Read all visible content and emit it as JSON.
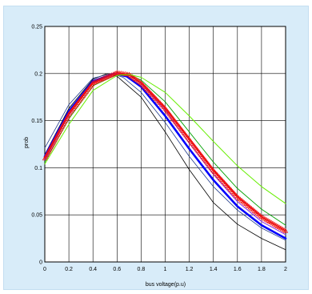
{
  "colors": {
    "panel_background": "#d8ecf9",
    "plot_background": "#ffffff",
    "grid": "#000000"
  },
  "chart_data": {
    "type": "line",
    "xlabel": "bus voltage(p.u)",
    "ylabel": "prob",
    "xlim": [
      0,
      2
    ],
    "ylim": [
      0,
      0.25
    ],
    "x_ticks": [
      "0",
      "0.2",
      "0.4",
      "0.6",
      "0.8",
      "1",
      "1.2",
      "1.4",
      "1.6",
      "1.8",
      "2"
    ],
    "y_ticks": [
      "0",
      "0.05",
      "0.1",
      "0.15",
      "0.2",
      "0.25"
    ],
    "grid": true,
    "series": [
      {
        "color": "#000000",
        "width": 0.8,
        "marker": "none",
        "points": [
          [
            0,
            0.114
          ],
          [
            0.2,
            0.163
          ],
          [
            0.4,
            0.194
          ],
          [
            0.52,
            0.2
          ],
          [
            0.6,
            0.197
          ],
          [
            0.8,
            0.175
          ],
          [
            1.0,
            0.138
          ],
          [
            1.2,
            0.098
          ],
          [
            1.4,
            0.063
          ],
          [
            1.6,
            0.04
          ],
          [
            1.8,
            0.025
          ],
          [
            2.0,
            0.013
          ]
        ]
      },
      {
        "color": "#1e3a8a",
        "width": 0.8,
        "marker": "none",
        "points": [
          [
            0,
            0.121
          ],
          [
            0.2,
            0.167
          ],
          [
            0.4,
            0.195
          ],
          [
            0.55,
            0.2
          ],
          [
            0.65,
            0.196
          ],
          [
            0.8,
            0.18
          ],
          [
            1.0,
            0.148
          ],
          [
            1.2,
            0.112
          ],
          [
            1.4,
            0.08
          ],
          [
            1.6,
            0.055
          ],
          [
            1.8,
            0.036
          ],
          [
            2.0,
            0.023
          ]
        ]
      },
      {
        "color": "#0000ff",
        "width": 2.6,
        "marker": "none",
        "points": [
          [
            0,
            0.112
          ],
          [
            0.2,
            0.16
          ],
          [
            0.4,
            0.192
          ],
          [
            0.58,
            0.2
          ],
          [
            0.68,
            0.197
          ],
          [
            0.8,
            0.186
          ],
          [
            1.0,
            0.155
          ],
          [
            1.2,
            0.12
          ],
          [
            1.4,
            0.087
          ],
          [
            1.6,
            0.059
          ],
          [
            1.8,
            0.039
          ],
          [
            2.0,
            0.025
          ]
        ]
      },
      {
        "color": "#8a2be2",
        "width": 1,
        "marker": "none",
        "points": [
          [
            0,
            0.108
          ],
          [
            0.2,
            0.156
          ],
          [
            0.4,
            0.19
          ],
          [
            0.6,
            0.2
          ],
          [
            0.7,
            0.198
          ],
          [
            0.8,
            0.189
          ],
          [
            1.0,
            0.161
          ],
          [
            1.2,
            0.126
          ],
          [
            1.4,
            0.093
          ],
          [
            1.6,
            0.064
          ],
          [
            1.8,
            0.043
          ],
          [
            2.0,
            0.029
          ]
        ]
      },
      {
        "color": "#00a000",
        "width": 0.9,
        "marker": "none",
        "points": [
          [
            0,
            0.106
          ],
          [
            0.2,
            0.152
          ],
          [
            0.4,
            0.187
          ],
          [
            0.6,
            0.199
          ],
          [
            0.7,
            0.199
          ],
          [
            0.8,
            0.193
          ],
          [
            1.0,
            0.17
          ],
          [
            1.2,
            0.138
          ],
          [
            1.4,
            0.106
          ],
          [
            1.6,
            0.078
          ],
          [
            1.8,
            0.056
          ],
          [
            2.0,
            0.039
          ]
        ]
      },
      {
        "color": "#ee1111",
        "width": 1.4,
        "marker": "triangle",
        "points": [
          [
            0,
            0.11
          ],
          [
            0.2,
            0.157
          ],
          [
            0.4,
            0.19
          ],
          [
            0.6,
            0.201
          ],
          [
            0.7,
            0.199
          ],
          [
            0.8,
            0.19
          ],
          [
            1.0,
            0.163
          ],
          [
            1.2,
            0.13
          ],
          [
            1.4,
            0.097
          ],
          [
            1.6,
            0.069
          ],
          [
            1.8,
            0.048
          ],
          [
            2.0,
            0.033
          ]
        ]
      },
      {
        "color": "#66ee00",
        "width": 1,
        "marker": "none",
        "points": [
          [
            0,
            0.104
          ],
          [
            0.2,
            0.146
          ],
          [
            0.4,
            0.182
          ],
          [
            0.6,
            0.198
          ],
          [
            0.7,
            0.199
          ],
          [
            0.8,
            0.196
          ],
          [
            1.0,
            0.18
          ],
          [
            1.2,
            0.155
          ],
          [
            1.4,
            0.128
          ],
          [
            1.6,
            0.102
          ],
          [
            1.8,
            0.08
          ],
          [
            2.0,
            0.062
          ]
        ]
      }
    ]
  }
}
